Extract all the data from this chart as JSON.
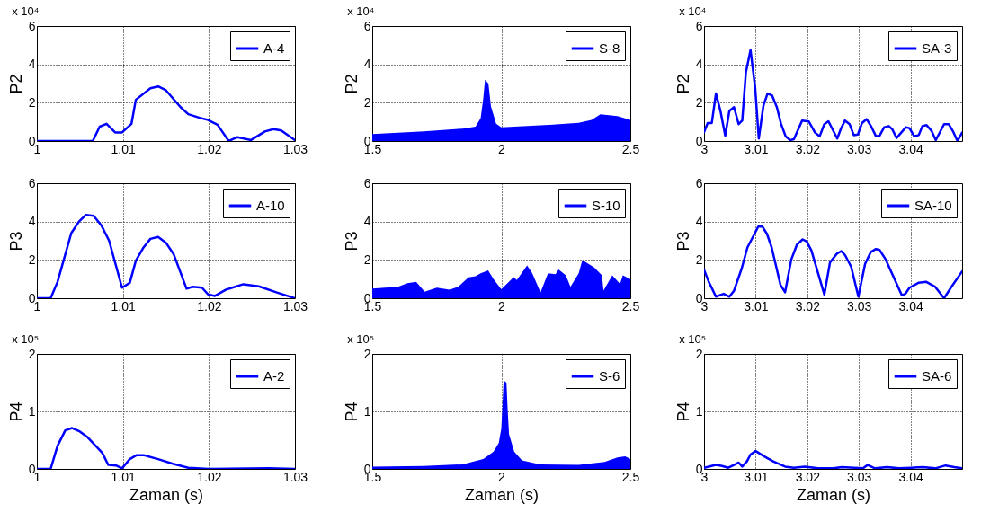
{
  "chart_data": [
    {
      "type": "line",
      "ylabel": "P2",
      "annotations": [
        "x 10⁴"
      ],
      "xlim": [
        1,
        1.03
      ],
      "xticks": [
        1,
        1.01,
        1.02,
        1.03
      ],
      "ylim": [
        0,
        6
      ],
      "yticks": [
        0,
        2,
        4,
        6
      ],
      "grid": true,
      "legend": "top right",
      "series": [
        {
          "name": "A-4",
          "color": "#0000ff",
          "x": [
            1,
            1.0065,
            1.0073,
            1.0081,
            1.0091,
            1.0099,
            1.011,
            1.0115,
            1.0132,
            1.0141,
            1.015,
            1.0167,
            1.0176,
            1.019,
            1.0199,
            1.021,
            1.0223,
            1.0233,
            1.0249,
            1.0265,
            1.0275,
            1.0284,
            1.03
          ],
          "values": [
            0,
            0,
            0.75,
            0.9,
            0.45,
            0.45,
            0.9,
            2.15,
            2.75,
            2.85,
            2.65,
            1.77,
            1.4,
            1.2,
            1.1,
            0.85,
            0,
            0.2,
            0.05,
            0.5,
            0.62,
            0.55,
            0.05
          ]
        }
      ]
    },
    {
      "type": "area",
      "ylabel": "P2",
      "annotations": [
        "x 10⁴"
      ],
      "xlim": [
        1.5,
        2.5
      ],
      "xticks": [
        1.5,
        2,
        2.5
      ],
      "ylim": [
        0,
        6
      ],
      "yticks": [
        0,
        2,
        4,
        6
      ],
      "grid": true,
      "legend": "top right",
      "series": [
        {
          "name": "S-8",
          "color": "#0000ff",
          "x": [
            1.5,
            1.7,
            1.85,
            1.9,
            1.92,
            1.93,
            1.937,
            1.95,
            1.96,
            1.98,
            2.0,
            2.2,
            2.3,
            2.35,
            2.384,
            2.45,
            2.5
          ],
          "values": [
            0.36,
            0.5,
            0.65,
            0.75,
            1.2,
            2.2,
            3.2,
            3.0,
            1.8,
            0.9,
            0.72,
            0.85,
            0.95,
            1.1,
            1.4,
            1.3,
            1.1
          ]
        }
      ]
    },
    {
      "type": "line",
      "ylabel": "P2",
      "annotations": [
        "x 10⁴"
      ],
      "xlim": [
        3,
        3.05
      ],
      "xticks": [
        3,
        3.01,
        3.02,
        3.03,
        3.04
      ],
      "ylim": [
        0,
        6
      ],
      "yticks": [
        0,
        2,
        4,
        6
      ],
      "grid": true,
      "legend": "top right",
      "series": [
        {
          "name": "SA-3",
          "color": "#0000ff",
          "x": [
            3,
            3.0007,
            3.0015,
            3.0023,
            3.0032,
            3.0041,
            3.0049,
            3.0058,
            3.0067,
            3.0074,
            3.0081,
            3.009,
            3.0099,
            3.0106,
            3.0115,
            3.0123,
            3.0132,
            3.0141,
            3.0149,
            3.0158,
            3.0167,
            3.0174,
            3.019,
            3.0203,
            3.0215,
            3.0224,
            3.0233,
            3.0241,
            3.0258,
            3.0265,
            3.0273,
            3.0282,
            3.029,
            3.0298,
            3.0306,
            3.0315,
            3.0324,
            3.0333,
            3.034,
            3.0349,
            3.0358,
            3.0365,
            3.0373,
            3.0382,
            3.0391,
            3.0398,
            3.0407,
            3.0416,
            3.0423,
            3.0431,
            3.0441,
            3.0449,
            3.0456,
            3.0465,
            3.0474,
            3.0483,
            3.0491,
            3.05
          ],
          "values": [
            0.47,
            0.94,
            0.94,
            2.48,
            1.54,
            0.28,
            1.57,
            1.77,
            0.88,
            1.07,
            3.57,
            4.75,
            2.79,
            0.13,
            1.85,
            2.48,
            2.37,
            1.77,
            0.91,
            0.25,
            0.05,
            0.09,
            1.07,
            1.02,
            0.44,
            0.25,
            0.88,
            1.03,
            0.13,
            0.63,
            1.07,
            0.88,
            0.31,
            0.34,
            0.94,
            1.14,
            0.75,
            0.25,
            0.28,
            0.72,
            0.78,
            0.6,
            0.16,
            0.44,
            0.72,
            0.67,
            0.25,
            0.31,
            0.78,
            0.83,
            0.52,
            0.05,
            0.41,
            0.88,
            0.88,
            0.47,
            0,
            0.44
          ]
        }
      ]
    },
    {
      "type": "line",
      "ylabel": "P3",
      "xlim": [
        1,
        1.03
      ],
      "xticks": [
        1,
        1.01,
        1.02,
        1.03
      ],
      "ylim": [
        0,
        6
      ],
      "yticks": [
        0,
        2,
        4,
        6
      ],
      "grid": true,
      "legend": "top right",
      "series": [
        {
          "name": "A-10",
          "color": "#0000ff",
          "x": [
            1,
            1.0016,
            1.0024,
            1.004,
            1.0049,
            1.0057,
            1.0066,
            1.0075,
            1.0084,
            1.0099,
            1.0108,
            1.0115,
            1.0124,
            1.0132,
            1.0141,
            1.015,
            1.0159,
            1.0174,
            1.0181,
            1.0192,
            1.0199,
            1.0207,
            1.022,
            1.024,
            1.0258,
            1.0279,
            1.03
          ],
          "values": [
            0,
            0,
            0.85,
            3.4,
            4.0,
            4.35,
            4.3,
            3.8,
            3.0,
            0.55,
            0.8,
            1.95,
            2.65,
            3.1,
            3.2,
            2.9,
            2.3,
            0.5,
            0.6,
            0.55,
            0.2,
            0.12,
            0.45,
            0.73,
            0.62,
            0.3,
            0
          ]
        }
      ]
    },
    {
      "type": "area",
      "ylabel": "P3",
      "xlim": [
        1.5,
        2.5
      ],
      "xticks": [
        1.5,
        2,
        2.5
      ],
      "ylim": [
        0,
        6
      ],
      "yticks": [
        0,
        2,
        4,
        6
      ],
      "grid": true,
      "legend": "top right",
      "series": [
        {
          "name": "S-10",
          "color": "#0000ff",
          "x": [
            1.5,
            1.6,
            1.636,
            1.67,
            1.703,
            1.75,
            1.8,
            1.833,
            1.873,
            1.9,
            1.92,
            1.949,
            1.97,
            2.0,
            2.048,
            2.06,
            2.1,
            2.12,
            2.152,
            2.181,
            2.21,
            2.222,
            2.25,
            2.268,
            2.3,
            2.314,
            2.36,
            2.39,
            2.396,
            2.43,
            2.46,
            2.471,
            2.5
          ],
          "values": [
            0.5,
            0.6,
            0.78,
            0.85,
            0.34,
            0.55,
            0.45,
            0.6,
            1.09,
            1.15,
            1.3,
            1.45,
            1.0,
            0.47,
            1.1,
            0.95,
            1.71,
            1.3,
            0.3,
            1.3,
            1.25,
            1.5,
            1.2,
            0.6,
            1.3,
            1.99,
            1.6,
            1.2,
            0.4,
            1.2,
            0.75,
            1.2,
            1.0
          ]
        }
      ]
    },
    {
      "type": "line",
      "ylabel": "P3",
      "xlim": [
        3,
        3.05
      ],
      "xticks": [
        3,
        3.01,
        3.02,
        3.03,
        3.04
      ],
      "ylim": [
        0,
        6
      ],
      "yticks": [
        0,
        2,
        4,
        6
      ],
      "grid": true,
      "legend": "top right",
      "series": [
        {
          "name": "SA-10",
          "color": "#0000ff",
          "x": [
            3,
            3.0009,
            3.0023,
            3.0038,
            3.0049,
            3.0058,
            3.0073,
            3.0084,
            3.0096,
            3.0105,
            3.0113,
            3.0122,
            3.0131,
            3.0148,
            3.0157,
            3.0169,
            3.018,
            3.0191,
            3.0199,
            3.0208,
            3.0233,
            3.0244,
            3.0258,
            3.0266,
            3.0273,
            3.0285,
            3.0299,
            3.0312,
            3.0323,
            3.0333,
            3.034,
            3.0352,
            3.0383,
            3.039,
            3.0398,
            3.0416,
            3.043,
            3.0448,
            3.0465,
            3.048,
            3.05
          ],
          "values": [
            1.48,
            0.86,
            0.08,
            0.23,
            0.08,
            0.39,
            1.56,
            2.65,
            3.27,
            3.74,
            3.74,
            3.35,
            2.65,
            0.7,
            0.31,
            2.02,
            2.8,
            3.07,
            2.96,
            2.49,
            0.19,
            1.87,
            2.34,
            2.46,
            2.26,
            1.64,
            0.08,
            1.79,
            2.41,
            2.57,
            2.52,
            2.02,
            0.16,
            0.23,
            0.55,
            0.81,
            0.86,
            0.59,
            0,
            0.62,
            1.4
          ]
        }
      ]
    },
    {
      "type": "line",
      "ylabel": "P4",
      "xlabel": "Zaman (s)",
      "annotations": [
        "x 10⁵"
      ],
      "xlim": [
        1,
        1.03
      ],
      "xticks": [
        1,
        1.01,
        1.02,
        1.03
      ],
      "ylim": [
        0,
        2
      ],
      "yticks": [
        0,
        1,
        2
      ],
      "grid": true,
      "legend": "top right",
      "series": [
        {
          "name": "A-2",
          "color": "#0000ff",
          "x": [
            1,
            1.0016,
            1.0024,
            1.0033,
            1.0041,
            1.005,
            1.0059,
            1.0076,
            1.0083,
            1.0092,
            1.0099,
            1.0108,
            1.0116,
            1.0124,
            1.0141,
            1.0158,
            1.0176,
            1.02,
            1.027,
            1.03
          ],
          "values": [
            0,
            0,
            0.4,
            0.67,
            0.71,
            0.65,
            0.55,
            0.28,
            0.07,
            0.06,
            0.01,
            0.17,
            0.24,
            0.24,
            0.17,
            0.09,
            0.02,
            0,
            0.01,
            0
          ]
        }
      ]
    },
    {
      "type": "area",
      "ylabel": "P4",
      "xlabel": "Zaman (s)",
      "annotations": [
        "x 10⁵"
      ],
      "xlim": [
        1.5,
        2.5
      ],
      "xticks": [
        1.5,
        2,
        2.5
      ],
      "ylim": [
        0,
        2
      ],
      "yticks": [
        0,
        1,
        2
      ],
      "grid": true,
      "legend": "top right",
      "series": [
        {
          "name": "S-6",
          "color": "#0000ff",
          "x": [
            1.5,
            1.7,
            1.85,
            1.93,
            1.97,
            1.99,
            2.0,
            2.005,
            2.009,
            2.02,
            2.025,
            2.03,
            2.05,
            2.08,
            2.15,
            2.3,
            2.4,
            2.45,
            2.48,
            2.5
          ],
          "values": [
            0.04,
            0.05,
            0.08,
            0.17,
            0.3,
            0.45,
            0.7,
            1.15,
            1.54,
            1.5,
            1.0,
            0.6,
            0.3,
            0.15,
            0.08,
            0.07,
            0.12,
            0.2,
            0.22,
            0.17
          ]
        }
      ]
    },
    {
      "type": "line",
      "ylabel": "P4",
      "xlabel": "Zaman (s)",
      "annotations": [
        "x 10⁵"
      ],
      "xlim": [
        3,
        3.05
      ],
      "xticks": [
        3,
        3.01,
        3.02,
        3.03,
        3.04
      ],
      "ylim": [
        0,
        2
      ],
      "yticks": [
        0,
        1,
        2
      ],
      "grid": true,
      "legend": "top right",
      "series": [
        {
          "name": "SA-6",
          "color": "#0000ff",
          "x": [
            3,
            3.0023,
            3.0035,
            3.0047,
            3.0058,
            3.0067,
            3.0074,
            3.0083,
            3.009,
            3.01,
            3.0116,
            3.0134,
            3.0157,
            3.0174,
            3.0195,
            3.0221,
            3.025,
            3.0267,
            3.0291,
            3.0308,
            3.0317,
            3.0331,
            3.0355,
            3.0378,
            3.0401,
            3.0424,
            3.0448,
            3.0468,
            3.0485,
            3.05
          ],
          "values": [
            0.02,
            0.07,
            0.05,
            0.02,
            0.07,
            0.11,
            0.04,
            0.13,
            0.25,
            0.31,
            0.22,
            0.13,
            0.04,
            0.02,
            0.04,
            0.01,
            0.01,
            0.03,
            0.02,
            0.01,
            0.07,
            0.01,
            0.03,
            0.01,
            0.02,
            0.03,
            0.01,
            0.06,
            0.03,
            0.01
          ]
        }
      ]
    }
  ]
}
